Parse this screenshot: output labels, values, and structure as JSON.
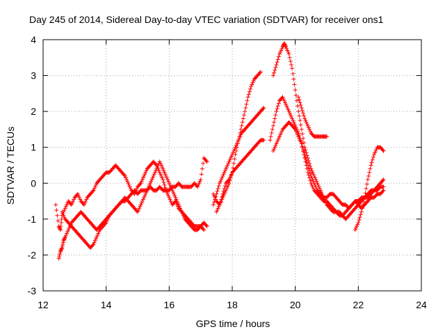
{
  "chart_data": {
    "type": "scatter",
    "title": "Day 245 of 2014, Sidereal Day-to-day VTEC variation (SDTVAR) for receiver ons1",
    "xlabel": "GPS time / hours",
    "ylabel": "SDTVAR / TECUs",
    "xlim": [
      12,
      24
    ],
    "ylim": [
      -3,
      4
    ],
    "xticks": [
      12,
      14,
      16,
      18,
      20,
      22,
      24
    ],
    "yticks": [
      -3,
      -2,
      -1,
      0,
      1,
      2,
      3,
      4
    ],
    "grid": true,
    "marker": "+",
    "color": "#ff0000",
    "series": [
      {
        "name": "trace-a",
        "x": [
          12.4,
          12.5,
          12.55,
          12.6,
          12.7,
          12.8,
          12.9,
          13.0,
          13.1,
          13.2,
          13.3,
          13.4,
          13.5,
          13.6,
          13.7,
          13.8,
          13.9,
          14.0,
          14.1,
          14.2,
          14.3,
          14.4,
          14.5,
          14.6,
          14.7,
          14.8,
          14.9,
          15.0,
          15.1,
          15.2,
          15.3,
          15.4,
          15.5,
          15.6,
          15.7,
          15.8,
          15.9,
          16.0,
          16.1,
          16.2,
          16.3,
          16.4,
          16.5,
          16.6,
          16.7,
          16.8,
          16.9,
          17.0,
          17.1,
          17.2
        ],
        "y": [
          -0.6,
          -1.2,
          -1.3,
          -0.9,
          -0.7,
          -0.5,
          -0.6,
          -0.4,
          -0.3,
          -0.5,
          -0.6,
          -0.4,
          -0.3,
          -0.2,
          0.0,
          0.1,
          0.2,
          0.3,
          0.3,
          0.4,
          0.5,
          0.4,
          0.3,
          0.2,
          0.0,
          -0.2,
          -0.3,
          -0.1,
          0.0,
          0.2,
          0.4,
          0.5,
          0.6,
          0.5,
          0.3,
          0.1,
          -0.2,
          -0.4,
          -0.6,
          -0.5,
          -0.7,
          -0.8,
          -0.9,
          -1.0,
          -1.1,
          -1.2,
          -1.2,
          -1.2,
          -1.1,
          -1.2
        ]
      },
      {
        "name": "trace-b",
        "x": [
          12.5,
          12.55,
          12.6,
          12.65,
          12.7,
          12.8,
          12.9,
          13.0,
          13.1,
          13.2,
          13.3,
          13.4,
          13.5,
          13.6,
          13.7,
          13.8,
          13.9,
          14.0,
          14.1,
          14.2,
          14.3,
          14.4,
          14.5,
          14.6,
          14.7,
          14.8,
          14.9,
          15.0,
          15.1,
          15.2,
          15.3,
          15.4,
          15.5,
          15.6,
          15.7,
          15.8,
          15.9,
          16.0,
          16.1,
          16.2,
          16.3,
          16.4,
          16.5,
          16.6,
          16.7,
          16.8,
          16.9,
          17.0,
          17.1
        ],
        "y": [
          -2.1,
          -1.9,
          -1.8,
          -1.6,
          -1.5,
          -1.3,
          -1.1,
          -1.0,
          -0.9,
          -0.8,
          -0.9,
          -1.0,
          -1.1,
          -1.2,
          -1.3,
          -1.2,
          -1.1,
          -1.0,
          -0.9,
          -0.8,
          -0.7,
          -0.6,
          -0.5,
          -0.4,
          -0.5,
          -0.6,
          -0.7,
          -0.8,
          -0.6,
          -0.4,
          -0.2,
          0.0,
          0.2,
          0.4,
          0.6,
          0.4,
          0.2,
          0.0,
          -0.2,
          -0.4,
          -0.6,
          -0.8,
          -1.0,
          -1.1,
          -1.2,
          -1.3,
          -1.3,
          -1.2,
          -1.3
        ]
      },
      {
        "name": "trace-c",
        "x": [
          12.6,
          12.7,
          12.8,
          12.9,
          13.0,
          13.1,
          13.2,
          13.3,
          13.4,
          13.5,
          13.6,
          13.7,
          13.8,
          13.9,
          14.0,
          14.1,
          14.2,
          14.3,
          14.4,
          14.5,
          14.6,
          14.7,
          14.8,
          14.9,
          15.0,
          15.1,
          15.2,
          15.3,
          15.4,
          15.5,
          15.6,
          15.7,
          15.8,
          15.9,
          16.0,
          16.1,
          16.2,
          16.3,
          16.4,
          16.5,
          16.6,
          16.7,
          16.8,
          16.9,
          17.0,
          17.1,
          17.2
        ],
        "y": [
          -0.8,
          -1.0,
          -1.1,
          -1.2,
          -1.3,
          -1.4,
          -1.5,
          -1.6,
          -1.7,
          -1.8,
          -1.7,
          -1.5,
          -1.3,
          -1.2,
          -1.1,
          -0.9,
          -0.8,
          -0.7,
          -0.6,
          -0.5,
          -0.5,
          -0.4,
          -0.3,
          -0.2,
          -0.3,
          -0.2,
          -0.2,
          -0.2,
          -0.1,
          -0.2,
          -0.2,
          -0.1,
          -0.2,
          -0.2,
          -0.2,
          -0.1,
          -0.1,
          0.0,
          -0.1,
          -0.1,
          -0.1,
          -0.1,
          0.0,
          -0.1,
          0.1,
          0.7,
          0.6
        ]
      },
      {
        "name": "trace-d",
        "x": [
          17.4,
          17.5,
          17.6,
          17.7,
          17.8,
          17.9,
          18.0,
          18.1,
          18.2,
          18.3,
          18.4,
          18.5,
          18.6,
          18.7,
          18.8,
          18.9,
          19.0
        ],
        "y": [
          -0.6,
          -0.3,
          0.0,
          0.2,
          0.4,
          0.6,
          0.8,
          1.0,
          1.2,
          1.4,
          1.5,
          1.6,
          1.7,
          1.8,
          1.9,
          2.0,
          2.1
        ]
      },
      {
        "name": "trace-e",
        "x": [
          17.4,
          17.5,
          17.6,
          17.7,
          17.8,
          17.9,
          18.0,
          18.1,
          18.2,
          18.3,
          18.4,
          18.5,
          18.6,
          18.7,
          18.8,
          18.9
        ],
        "y": [
          -0.3,
          -0.5,
          -0.6,
          -0.4,
          -0.2,
          0.0,
          0.3,
          0.8,
          1.2,
          1.6,
          2.0,
          2.4,
          2.7,
          2.9,
          3.0,
          3.1
        ]
      },
      {
        "name": "trace-f",
        "x": [
          17.5,
          17.6,
          17.7,
          17.8,
          17.9,
          18.0,
          18.1,
          18.2,
          18.3,
          18.4,
          18.5,
          18.6,
          18.7,
          18.8,
          18.9,
          19.0
        ],
        "y": [
          -0.8,
          -0.6,
          -0.3,
          0.0,
          0.1,
          0.3,
          0.4,
          0.5,
          0.6,
          0.7,
          0.8,
          0.9,
          1.0,
          1.1,
          1.2,
          1.2
        ]
      },
      {
        "name": "trace-g",
        "x": [
          19.3,
          19.4,
          19.5,
          19.6,
          19.65,
          19.7,
          19.8,
          19.9,
          20.0,
          20.1,
          20.2,
          20.3,
          20.4,
          20.5,
          20.6,
          20.7,
          20.8,
          20.9,
          21.0,
          21.1,
          21.2,
          21.3,
          21.4,
          21.5,
          21.6,
          21.7,
          21.8,
          21.9,
          22.0,
          22.1,
          22.2,
          22.3,
          22.4,
          22.5,
          22.6,
          22.7,
          22.8
        ],
        "y": [
          3.0,
          3.3,
          3.6,
          3.8,
          3.9,
          3.8,
          3.6,
          3.2,
          2.6,
          2.0,
          1.5,
          1.0,
          0.7,
          0.4,
          0.2,
          0.0,
          -0.2,
          -0.4,
          -0.6,
          -0.7,
          -0.8,
          -0.8,
          -0.9,
          -0.9,
          -1.0,
          -0.9,
          -0.8,
          -0.7,
          -0.6,
          -0.5,
          -0.4,
          -0.4,
          -0.3,
          -0.2,
          -0.2,
          -0.1,
          -0.1
        ]
      },
      {
        "name": "trace-h",
        "x": [
          19.2,
          19.3,
          19.4,
          19.5,
          19.6,
          19.7,
          19.8,
          19.9,
          20.0,
          20.1,
          20.2,
          20.3,
          20.4,
          20.5,
          20.6,
          20.7,
          20.8,
          20.9,
          21.0,
          21.1,
          21.2,
          21.3,
          21.4,
          21.5,
          21.6,
          21.7,
          21.8,
          21.9,
          22.0,
          22.1,
          22.2,
          22.3,
          22.4,
          22.5,
          22.6,
          22.7,
          22.8
        ],
        "y": [
          1.2,
          1.6,
          2.0,
          2.3,
          2.4,
          2.2,
          2.0,
          1.8,
          1.6,
          1.4,
          1.1,
          0.7,
          0.3,
          0.0,
          -0.2,
          -0.3,
          -0.4,
          -0.5,
          -0.5,
          -0.6,
          -0.7,
          -0.8,
          -0.8,
          -0.9,
          -0.8,
          -0.7,
          -0.6,
          -0.5,
          -0.5,
          -0.4,
          -0.4,
          -0.3,
          -0.2,
          -0.2,
          -0.1,
          0.0,
          0.1
        ]
      },
      {
        "name": "trace-i",
        "x": [
          19.3,
          19.4,
          19.5,
          19.6,
          19.7,
          19.8,
          19.9,
          20.0,
          20.1,
          20.2,
          20.3,
          20.4,
          20.5,
          20.6,
          20.7,
          20.8,
          20.9,
          21.0,
          21.1,
          21.2,
          21.3,
          21.4,
          21.5,
          21.6,
          21.7,
          21.8,
          21.9,
          22.0,
          22.1,
          22.2,
          22.3,
          22.4,
          22.5,
          22.6,
          22.7,
          22.8
        ],
        "y": [
          0.9,
          1.1,
          1.3,
          1.5,
          1.6,
          1.7,
          1.6,
          1.5,
          1.3,
          1.1,
          0.8,
          0.5,
          0.2,
          0.0,
          -0.2,
          -0.3,
          -0.4,
          -0.4,
          -0.3,
          -0.3,
          -0.4,
          -0.5,
          -0.6,
          -0.6,
          -0.7,
          -0.6,
          -0.5,
          -0.6,
          -0.7,
          -0.6,
          -0.5,
          -0.4,
          -0.4,
          -0.3,
          -0.3,
          -0.2
        ]
      },
      {
        "name": "trace-j",
        "x": [
          20.1,
          20.2,
          20.3,
          20.4,
          20.5,
          20.6,
          20.7,
          20.8,
          20.9,
          21.0
        ],
        "y": [
          2.4,
          2.1,
          1.8,
          1.6,
          1.4,
          1.3,
          1.3,
          1.3,
          1.3,
          1.3
        ]
      },
      {
        "name": "trace-k",
        "x": [
          21.9,
          22.0,
          22.1,
          22.2,
          22.3,
          22.4,
          22.5,
          22.6,
          22.7,
          22.8
        ],
        "y": [
          -1.3,
          -1.1,
          -0.8,
          -0.4,
          0.1,
          0.5,
          0.8,
          1.0,
          1.0,
          0.9
        ]
      }
    ]
  }
}
